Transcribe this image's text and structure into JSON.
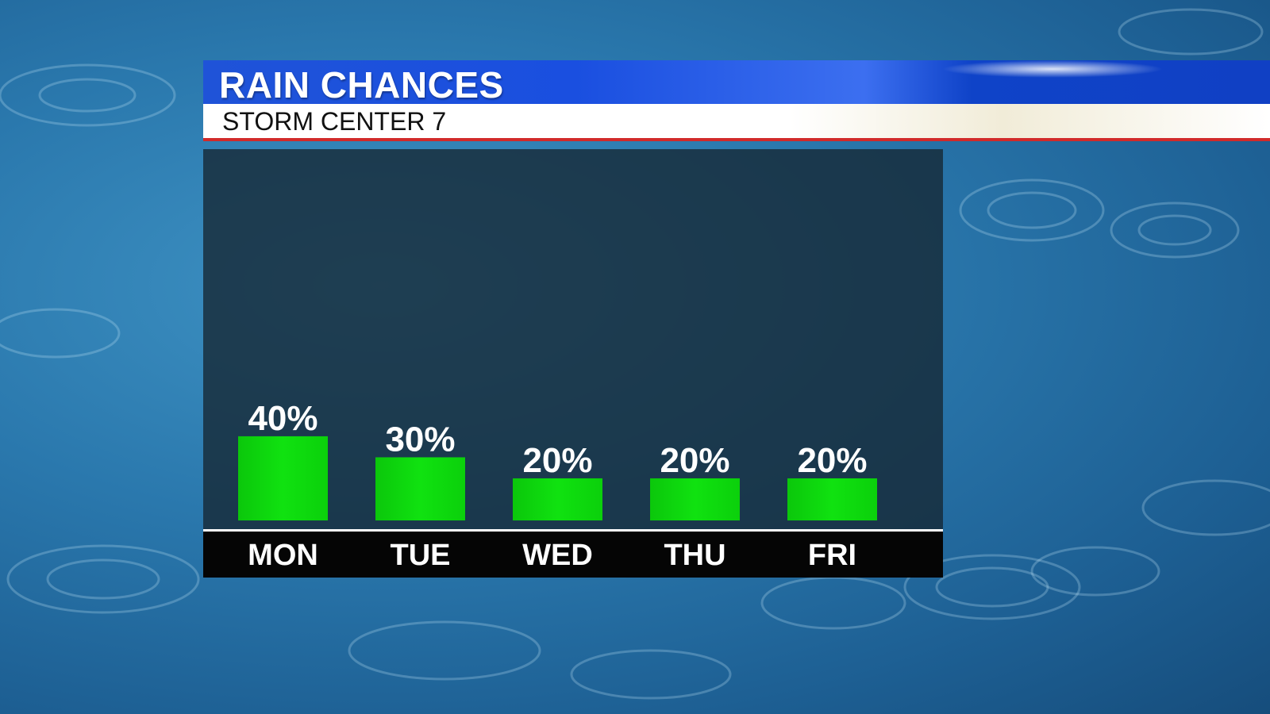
{
  "header": {
    "title": "RAIN CHANCES",
    "subtitle": "STORM CENTER 7"
  },
  "colors": {
    "bar": "#10e210",
    "title_bar": "#1f53d8",
    "accent_line": "#d12a2a"
  },
  "chart_data": {
    "type": "bar",
    "categories": [
      "MON",
      "TUE",
      "WED",
      "THU",
      "FRI"
    ],
    "values": [
      40,
      30,
      20,
      20,
      20
    ],
    "value_labels": [
      "40%",
      "30%",
      "20%",
      "20%",
      "20%"
    ],
    "ylim": [
      0,
      100
    ],
    "grid": false,
    "legend": "none"
  }
}
